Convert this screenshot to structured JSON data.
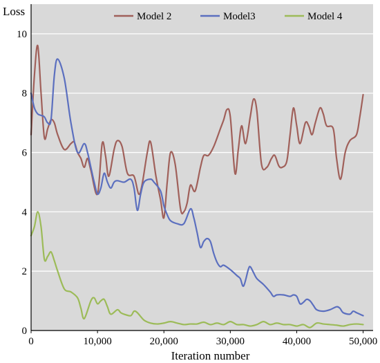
{
  "chart_data": {
    "type": "line",
    "title": "",
    "xlabel": "Iteration number",
    "ylabel": "Loss",
    "xlim": [
      0,
      51500
    ],
    "ylim": [
      0,
      11
    ],
    "grid": "horizontal",
    "plot_background": "#d9d9d9",
    "legend_position": "top",
    "x_ticks": [
      0,
      10000,
      20000,
      30000,
      40000,
      50000
    ],
    "x_tick_labels": [
      "0",
      "10,000",
      "20,000",
      "30,000",
      "40,000",
      "50,000"
    ],
    "y_ticks": [
      0,
      2,
      4,
      6,
      8,
      10
    ],
    "y_tick_labels": [
      "0",
      "2",
      "4",
      "6",
      "8",
      "10"
    ],
    "series": [
      {
        "name": "Model 2",
        "color": "#a0605a",
        "points": [
          [
            0,
            6.6
          ],
          [
            500,
            8.6
          ],
          [
            1000,
            9.6
          ],
          [
            1500,
            8.0
          ],
          [
            2000,
            6.5
          ],
          [
            2500,
            6.8
          ],
          [
            3000,
            7.1
          ],
          [
            3500,
            7.0
          ],
          [
            4000,
            6.6
          ],
          [
            5000,
            6.1
          ],
          [
            6000,
            6.3
          ],
          [
            6500,
            6.35
          ],
          [
            7000,
            6.0
          ],
          [
            7500,
            5.8
          ],
          [
            8000,
            5.5
          ],
          [
            8500,
            5.8
          ],
          [
            9000,
            5.4
          ],
          [
            10000,
            4.6
          ],
          [
            10700,
            6.3
          ],
          [
            11200,
            5.9
          ],
          [
            11700,
            5.2
          ],
          [
            12500,
            6.1
          ],
          [
            13000,
            6.4
          ],
          [
            13700,
            6.2
          ],
          [
            14500,
            5.3
          ],
          [
            15500,
            5.2
          ],
          [
            16200,
            4.6
          ],
          [
            16700,
            4.9
          ],
          [
            17500,
            6.0
          ],
          [
            18000,
            6.35
          ],
          [
            18800,
            5.2
          ],
          [
            19500,
            4.4
          ],
          [
            20000,
            3.8
          ],
          [
            20500,
            5.0
          ],
          [
            21000,
            6.0
          ],
          [
            21700,
            5.6
          ],
          [
            22500,
            4.1
          ],
          [
            23000,
            4.0
          ],
          [
            23500,
            4.3
          ],
          [
            24000,
            4.9
          ],
          [
            24700,
            4.7
          ],
          [
            25500,
            5.5
          ],
          [
            26000,
            5.9
          ],
          [
            26700,
            5.9
          ],
          [
            27500,
            6.2
          ],
          [
            28500,
            6.8
          ],
          [
            29000,
            7.1
          ],
          [
            29500,
            7.45
          ],
          [
            30000,
            7.2
          ],
          [
            30700,
            5.3
          ],
          [
            31200,
            6.1
          ],
          [
            31700,
            6.9
          ],
          [
            32300,
            6.3
          ],
          [
            33000,
            7.2
          ],
          [
            33500,
            7.8
          ],
          [
            34000,
            7.4
          ],
          [
            34700,
            5.6
          ],
          [
            35500,
            5.5
          ],
          [
            36200,
            5.8
          ],
          [
            36700,
            5.9
          ],
          [
            37300,
            5.55
          ],
          [
            37800,
            5.5
          ],
          [
            38500,
            5.7
          ],
          [
            39000,
            6.6
          ],
          [
            39500,
            7.5
          ],
          [
            40000,
            6.9
          ],
          [
            40500,
            6.3
          ],
          [
            41300,
            7.0
          ],
          [
            41800,
            6.9
          ],
          [
            42300,
            6.6
          ],
          [
            42800,
            7.0
          ],
          [
            43500,
            7.5
          ],
          [
            44000,
            7.3
          ],
          [
            44500,
            6.9
          ],
          [
            45500,
            6.8
          ],
          [
            46000,
            5.8
          ],
          [
            46600,
            5.1
          ],
          [
            47300,
            6.0
          ],
          [
            48000,
            6.4
          ],
          [
            49000,
            6.6
          ],
          [
            49500,
            7.2
          ],
          [
            50000,
            7.95
          ]
        ]
      },
      {
        "name": "Model3",
        "color": "#5b6fbf",
        "points": [
          [
            0,
            8.0
          ],
          [
            500,
            7.5
          ],
          [
            1000,
            7.3
          ],
          [
            1500,
            7.25
          ],
          [
            2000,
            7.2
          ],
          [
            2500,
            7.0
          ],
          [
            3000,
            7.1
          ],
          [
            3500,
            8.6
          ],
          [
            4000,
            9.15
          ],
          [
            5000,
            8.5
          ],
          [
            6000,
            7.0
          ],
          [
            7000,
            6.0
          ],
          [
            8000,
            6.3
          ],
          [
            8500,
            6.0
          ],
          [
            9000,
            5.5
          ],
          [
            9500,
            5.0
          ],
          [
            10000,
            4.6
          ],
          [
            10500,
            4.8
          ],
          [
            11000,
            5.3
          ],
          [
            11500,
            5.0
          ],
          [
            12000,
            4.8
          ],
          [
            12500,
            5.0
          ],
          [
            13000,
            5.05
          ],
          [
            14000,
            5.0
          ],
          [
            15000,
            5.1
          ],
          [
            15500,
            4.8
          ],
          [
            16000,
            4.05
          ],
          [
            16500,
            4.6
          ],
          [
            17000,
            5.0
          ],
          [
            18000,
            5.1
          ],
          [
            18500,
            5.0
          ],
          [
            19500,
            4.7
          ],
          [
            20000,
            4.2
          ],
          [
            20500,
            3.9
          ],
          [
            21000,
            3.7
          ],
          [
            22000,
            3.6
          ],
          [
            23000,
            3.6
          ],
          [
            24000,
            4.1
          ],
          [
            24500,
            3.8
          ],
          [
            25000,
            3.3
          ],
          [
            25500,
            2.8
          ],
          [
            26000,
            3.0
          ],
          [
            26500,
            3.1
          ],
          [
            27000,
            3.0
          ],
          [
            27500,
            2.6
          ],
          [
            28000,
            2.3
          ],
          [
            28500,
            2.15
          ],
          [
            29000,
            2.2
          ],
          [
            30000,
            2.05
          ],
          [
            31000,
            1.85
          ],
          [
            31500,
            1.75
          ],
          [
            32000,
            1.5
          ],
          [
            32700,
            2.05
          ],
          [
            33000,
            2.15
          ],
          [
            33500,
            1.95
          ],
          [
            34000,
            1.75
          ],
          [
            35000,
            1.55
          ],
          [
            36000,
            1.3
          ],
          [
            36500,
            1.15
          ],
          [
            37000,
            1.2
          ],
          [
            38000,
            1.2
          ],
          [
            39000,
            1.15
          ],
          [
            39500,
            1.2
          ],
          [
            40000,
            1.15
          ],
          [
            40500,
            0.9
          ],
          [
            41000,
            0.95
          ],
          [
            41500,
            1.05
          ],
          [
            42000,
            1.0
          ],
          [
            42500,
            0.85
          ],
          [
            43000,
            0.7
          ],
          [
            44000,
            0.65
          ],
          [
            45000,
            0.7
          ],
          [
            46000,
            0.8
          ],
          [
            46500,
            0.75
          ],
          [
            47000,
            0.6
          ],
          [
            48000,
            0.55
          ],
          [
            48500,
            0.65
          ],
          [
            49000,
            0.6
          ],
          [
            49500,
            0.55
          ],
          [
            50000,
            0.5
          ]
        ]
      },
      {
        "name": "Model 4",
        "color": "#9cbb58",
        "points": [
          [
            0,
            3.2
          ],
          [
            500,
            3.5
          ],
          [
            1000,
            4.0
          ],
          [
            1500,
            3.5
          ],
          [
            2000,
            2.4
          ],
          [
            2500,
            2.5
          ],
          [
            3000,
            2.65
          ],
          [
            3500,
            2.35
          ],
          [
            4000,
            2.0
          ],
          [
            5000,
            1.4
          ],
          [
            6000,
            1.3
          ],
          [
            7000,
            1.1
          ],
          [
            7500,
            0.75
          ],
          [
            8000,
            0.4
          ],
          [
            9000,
            1.0
          ],
          [
            9500,
            1.1
          ],
          [
            10000,
            0.9
          ],
          [
            10500,
            1.0
          ],
          [
            11000,
            1.05
          ],
          [
            11500,
            0.8
          ],
          [
            12000,
            0.55
          ],
          [
            13000,
            0.7
          ],
          [
            13500,
            0.6
          ],
          [
            14000,
            0.55
          ],
          [
            15000,
            0.5
          ],
          [
            15500,
            0.65
          ],
          [
            16000,
            0.6
          ],
          [
            17000,
            0.35
          ],
          [
            18000,
            0.25
          ],
          [
            19000,
            0.22
          ],
          [
            20000,
            0.25
          ],
          [
            21000,
            0.3
          ],
          [
            22000,
            0.25
          ],
          [
            23000,
            0.2
          ],
          [
            24000,
            0.22
          ],
          [
            25000,
            0.22
          ],
          [
            26000,
            0.28
          ],
          [
            27000,
            0.2
          ],
          [
            28000,
            0.25
          ],
          [
            29000,
            0.2
          ],
          [
            30000,
            0.3
          ],
          [
            31000,
            0.2
          ],
          [
            32000,
            0.2
          ],
          [
            33000,
            0.15
          ],
          [
            34000,
            0.2
          ],
          [
            35000,
            0.3
          ],
          [
            36000,
            0.2
          ],
          [
            37000,
            0.25
          ],
          [
            38000,
            0.2
          ],
          [
            39000,
            0.2
          ],
          [
            40000,
            0.15
          ],
          [
            41000,
            0.2
          ],
          [
            42000,
            0.1
          ],
          [
            43000,
            0.25
          ],
          [
            44000,
            0.22
          ],
          [
            45000,
            0.2
          ],
          [
            46000,
            0.18
          ],
          [
            47000,
            0.15
          ],
          [
            48000,
            0.2
          ],
          [
            49000,
            0.22
          ],
          [
            50000,
            0.2
          ]
        ]
      }
    ]
  }
}
